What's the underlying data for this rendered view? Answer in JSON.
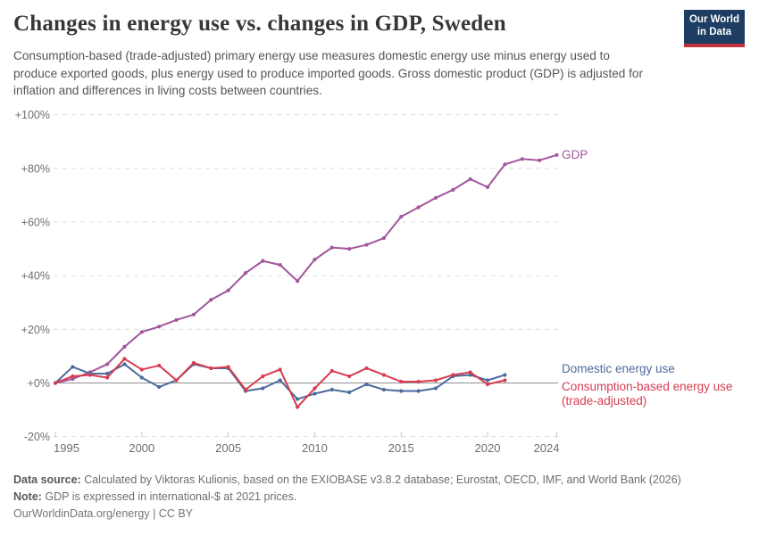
{
  "header": {
    "title": "Changes in energy use vs. changes in GDP, Sweden",
    "subtitle": "Consumption-based (trade-adjusted) primary energy use measures domestic energy use minus energy used to produce exported goods, plus energy used to produce imported goods. Gross domestic product (GDP) is adjusted for inflation and differences in living costs between countries.",
    "logo": {
      "line1": "Our World",
      "line2": "in Data",
      "bg_color": "#1d3d63",
      "stripe_color": "#c5303e"
    }
  },
  "chart_data": {
    "type": "line",
    "title": "Changes in energy use vs. changes in GDP, Sweden",
    "xlabel": "",
    "ylabel": "",
    "xlim": [
      1995,
      2024
    ],
    "ylim": [
      -20,
      100
    ],
    "grid": "horizontal dashed",
    "legend_position": "right end of lines",
    "yticks": [
      {
        "label": "+100%",
        "value": 100
      },
      {
        "label": "+80%",
        "value": 80
      },
      {
        "label": "+60%",
        "value": 60
      },
      {
        "label": "+40%",
        "value": 40
      },
      {
        "label": "+20%",
        "value": 20
      },
      {
        "label": "+0%",
        "value": 0
      },
      {
        "label": "-20%",
        "value": -20
      }
    ],
    "xticks": [
      {
        "label": "1995",
        "year": 1995
      },
      {
        "label": "2000",
        "year": 2000
      },
      {
        "label": "2005",
        "year": 2005
      },
      {
        "label": "2010",
        "year": 2010
      },
      {
        "label": "2015",
        "year": 2015
      },
      {
        "label": "2020",
        "year": 2020
      },
      {
        "label": "2024",
        "year": 2024
      }
    ],
    "series": [
      {
        "id": "gdp",
        "name": "GDP",
        "color": "#a2559c",
        "years": [
          1995,
          1996,
          1997,
          1998,
          1999,
          2000,
          2001,
          2002,
          2003,
          2004,
          2005,
          2006,
          2007,
          2008,
          2009,
          2010,
          2011,
          2012,
          2013,
          2014,
          2015,
          2016,
          2017,
          2018,
          2019,
          2020,
          2021,
          2022,
          2023,
          2024
        ],
        "values": [
          0,
          1.5,
          4,
          7,
          13.5,
          19,
          21,
          23.5,
          25.5,
          31,
          34.5,
          41,
          45.5,
          44,
          38,
          46,
          50.5,
          50,
          51.5,
          54,
          62,
          65.5,
          69,
          72,
          76,
          73,
          81.5,
          83.5,
          83,
          85
        ]
      },
      {
        "id": "domestic",
        "name": "Domestic energy use",
        "color": "#4c6a9c",
        "years": [
          1995,
          1996,
          1997,
          1998,
          1999,
          2000,
          2001,
          2002,
          2003,
          2004,
          2005,
          2006,
          2007,
          2008,
          2009,
          2010,
          2011,
          2012,
          2013,
          2014,
          2015,
          2016,
          2017,
          2018,
          2019,
          2020,
          2021
        ],
        "values": [
          0,
          6,
          3.5,
          3.5,
          7,
          2,
          -1.5,
          1,
          7,
          5.5,
          5.5,
          -3,
          -2,
          1,
          -6,
          -4,
          -2.5,
          -3.5,
          -0.5,
          -2.5,
          -3,
          -3,
          -2,
          2.5,
          3,
          1,
          3
        ]
      },
      {
        "id": "consumption",
        "name": "Consumption-based energy use (trade-adjusted)",
        "color": "#d73c50",
        "years": [
          1995,
          1996,
          1997,
          1998,
          1999,
          2000,
          2001,
          2002,
          2003,
          2004,
          2005,
          2006,
          2007,
          2008,
          2009,
          2010,
          2011,
          2012,
          2013,
          2014,
          2015,
          2016,
          2017,
          2018,
          2019,
          2020,
          2021
        ],
        "values": [
          0,
          2.5,
          3,
          2,
          9,
          5,
          6.5,
          1,
          7.5,
          5.5,
          6,
          -2.5,
          2.5,
          5,
          -9,
          -2,
          4.5,
          2.5,
          5.5,
          3,
          0.5,
          0.5,
          1,
          3,
          4,
          -0.5,
          1
        ]
      }
    ]
  },
  "legend": {
    "gdp": "GDP",
    "domestic": "Domestic energy use",
    "consumption_line1": "Consumption-based energy use",
    "consumption_line2": "(trade-adjusted)"
  },
  "footer": {
    "source_label": "Data source:",
    "source_text": " Calculated by Viktoras Kulionis, based on the EXIOBASE v3.8.2 database; Eurostat, OECD, IMF, and World Bank (2026)",
    "note_label": "Note:",
    "note_text": " GDP is expressed in international-$ at 2021 prices.",
    "link_text": "OurWorldinData.org/energy | CC BY"
  }
}
